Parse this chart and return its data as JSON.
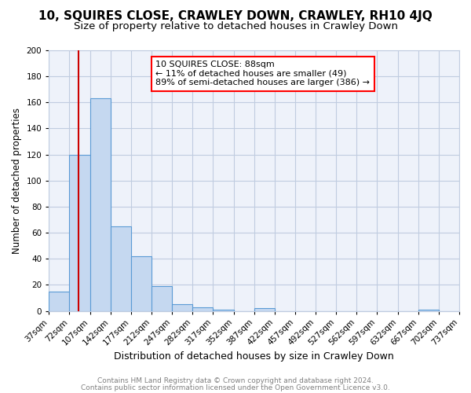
{
  "title": "10, SQUIRES CLOSE, CRAWLEY DOWN, CRAWLEY, RH10 4JQ",
  "subtitle": "Size of property relative to detached houses in Crawley Down",
  "xlabel": "Distribution of detached houses by size in Crawley Down",
  "ylabel": "Number of detached properties",
  "bar_values": [
    15,
    120,
    163,
    65,
    42,
    19,
    5,
    3,
    1,
    0,
    2,
    0,
    0,
    0,
    0,
    0,
    0,
    0,
    1,
    0
  ],
  "bin_edges": [
    37,
    72,
    107,
    142,
    177,
    212,
    247,
    282,
    317,
    352,
    387,
    422,
    457,
    492,
    527,
    562,
    597,
    632,
    667,
    702,
    737
  ],
  "tick_labels": [
    "37sqm",
    "72sqm",
    "107sqm",
    "142sqm",
    "177sqm",
    "212sqm",
    "247sqm",
    "282sqm",
    "317sqm",
    "352sqm",
    "387sqm",
    "422sqm",
    "457sqm",
    "492sqm",
    "527sqm",
    "562sqm",
    "597sqm",
    "632sqm",
    "667sqm",
    "702sqm",
    "737sqm"
  ],
  "bar_color": "#c5d8f0",
  "bar_edge_color": "#5b9bd5",
  "background_color": "#eef2fa",
  "grid_color": "#c0cce0",
  "vline_x": 88,
  "vline_color": "#cc0000",
  "annotation_line1": "10 SQUIRES CLOSE: 88sqm",
  "annotation_line2": "← 11% of detached houses are smaller (49)",
  "annotation_line3": "89% of semi-detached houses are larger (386) →",
  "ylim": [
    0,
    200
  ],
  "yticks": [
    0,
    20,
    40,
    60,
    80,
    100,
    120,
    140,
    160,
    180,
    200
  ],
  "title_fontsize": 11,
  "subtitle_fontsize": 9.5,
  "xlabel_fontsize": 9,
  "ylabel_fontsize": 8.5,
  "tick_fontsize": 7.5,
  "annot_fontsize": 8,
  "footer_fontsize": 6.5,
  "footer_line1": "Contains HM Land Registry data © Crown copyright and database right 2024.",
  "footer_line2": "Contains public sector information licensed under the Open Government Licence v3.0."
}
